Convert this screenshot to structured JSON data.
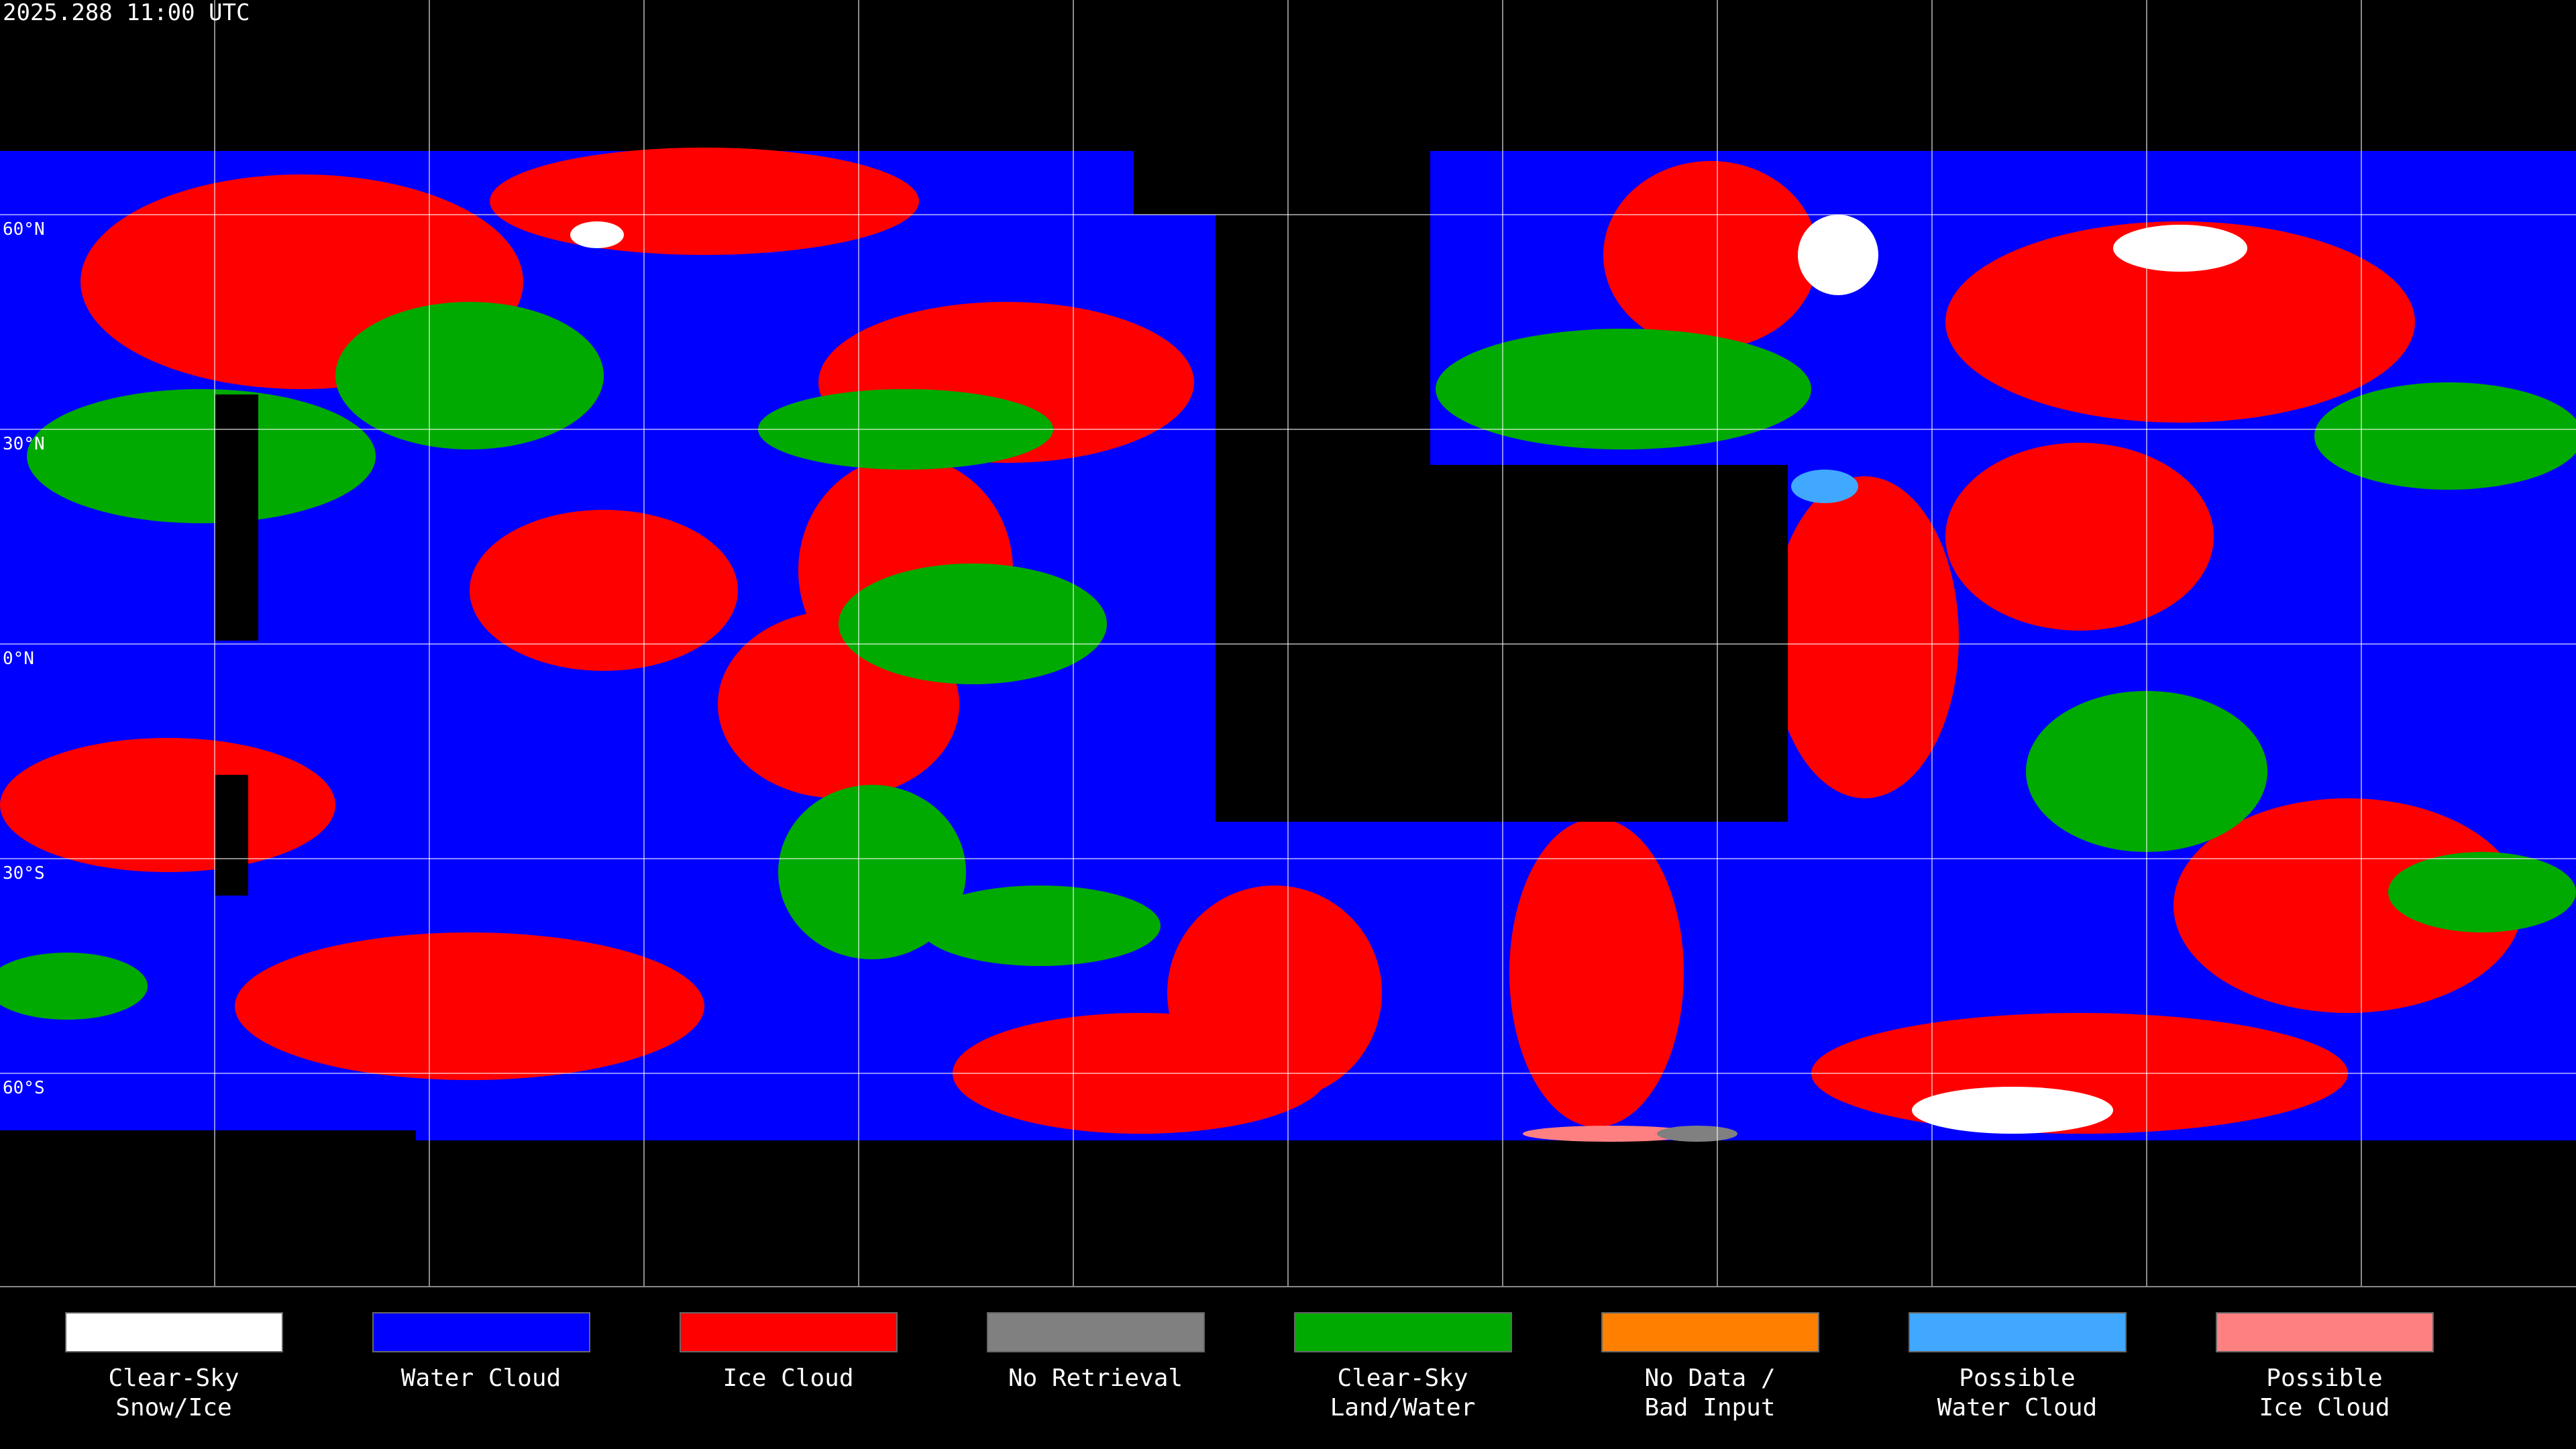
{
  "header": {
    "title": "2025.288 11:00 UTC"
  },
  "lat_labels": [
    "60°N",
    "30°N",
    "0°N",
    "30°S",
    "60°S"
  ],
  "legend": [
    {
      "color": "#ffffff",
      "lines": [
        "Clear-Sky",
        "Snow/Ice"
      ]
    },
    {
      "color": "#0000ff",
      "lines": [
        "Water Cloud"
      ]
    },
    {
      "color": "#ff0000",
      "lines": [
        "Ice Cloud"
      ]
    },
    {
      "color": "#808080",
      "lines": [
        "No Retrieval"
      ]
    },
    {
      "color": "#00aa00",
      "lines": [
        "Clear-Sky",
        "Land/Water"
      ]
    },
    {
      "color": "#ff8000",
      "lines": [
        "No Data /",
        "Bad Input"
      ]
    },
    {
      "color": "#40a8ff",
      "lines": [
        "Possible",
        "Water Cloud"
      ]
    },
    {
      "color": "#ff8080",
      "lines": [
        "Possible",
        "Ice Cloud"
      ]
    }
  ]
}
